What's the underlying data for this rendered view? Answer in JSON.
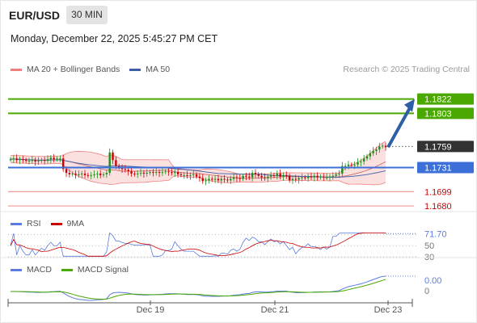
{
  "header": {
    "pair": "EUR/USD",
    "interval": "30 MIN",
    "datetime": "Monday, December 22, 2025 5:45:27 PM CET"
  },
  "legend": {
    "bb_label": "MA 20 + Bollinger Bands",
    "ma50_label": "MA 50",
    "credit": "Research © 2025 Trading Central"
  },
  "rsi_legend": {
    "rsi_label": "RSI",
    "ma_label": "9MA"
  },
  "macd_legend": {
    "macd_label": "MACD",
    "signal_label": "MACD Signal"
  },
  "colors": {
    "up": "#1a8f1a",
    "down": "#cc0000",
    "resistance": "#4aa800",
    "pivot": "#3c6fd8",
    "support": "#ee9a9a",
    "current": "#333333",
    "arrow": "#2f5ea8",
    "bb": "#f08080",
    "bb_fill": "#fbe0e0",
    "ma20": "#d06a6a",
    "ma50": "#3c5fa8",
    "rsi": "#5b7be0",
    "rsi_ma": "#cc0000",
    "macd": "#5b7be0",
    "macd_signal": "#4aa800"
  },
  "chart_data": [
    {
      "type": "candlestick",
      "title": "EUR/USD",
      "interval": "30 MIN",
      "x_ticks": [
        "Dec 19",
        "Dec 21",
        "Dec 23"
      ],
      "levels": [
        {
          "value": 1.1822,
          "label": "1.1822",
          "kind": "resistance"
        },
        {
          "value": 1.1803,
          "label": "1.1803",
          "kind": "resistance"
        },
        {
          "value": 1.1759,
          "label": "1.1759",
          "kind": "current"
        },
        {
          "value": 1.1731,
          "label": "1.1731",
          "kind": "pivot"
        },
        {
          "value": 1.1699,
          "label": "1.1699",
          "kind": "support"
        },
        {
          "value": 1.168,
          "label": "1.1680",
          "kind": "support"
        }
      ],
      "ylim": [
        1.1664,
        1.1857
      ],
      "close": [
        1.1742,
        1.1743,
        1.1741,
        1.1742,
        1.1741,
        1.174,
        1.174,
        1.1741,
        1.1739,
        1.174,
        1.1741,
        1.174,
        1.1742,
        1.1744,
        1.1742,
        1.1743,
        1.1743,
        1.1729,
        1.1724,
        1.1722,
        1.1723,
        1.1721,
        1.1722,
        1.1723,
        1.1721,
        1.172,
        1.1721,
        1.1722,
        1.1723,
        1.1721,
        1.1722,
        1.1724,
        1.1751,
        1.1741,
        1.1733,
        1.1731,
        1.1729,
        1.1728,
        1.1726,
        1.1723,
        1.1722,
        1.1723,
        1.1724,
        1.1723,
        1.1724,
        1.1725,
        1.1724,
        1.1725,
        1.1724,
        1.1725,
        1.1726,
        1.1725,
        1.1724,
        1.1725,
        1.1722,
        1.1721,
        1.1721,
        1.172,
        1.1721,
        1.1722,
        1.1719,
        1.1717,
        1.1713,
        1.1714,
        1.1716,
        1.1715,
        1.1716,
        1.1714,
        1.1716,
        1.1715,
        1.1714,
        1.1716,
        1.1718,
        1.1717,
        1.1716,
        1.172,
        1.1719,
        1.1718,
        1.1724,
        1.1722,
        1.172,
        1.1718,
        1.1717,
        1.1719,
        1.1721,
        1.172,
        1.1723,
        1.1719,
        1.1721,
        1.172,
        1.1714,
        1.1716,
        1.1715,
        1.1717,
        1.1718,
        1.1717,
        1.1719,
        1.1718,
        1.172,
        1.1718,
        1.1719,
        1.1718,
        1.1718,
        1.1719,
        1.172,
        1.1722,
        1.1723,
        1.1733,
        1.1733,
        1.1735,
        1.1734,
        1.1735,
        1.1738,
        1.1739,
        1.1743,
        1.1746,
        1.175,
        1.1753,
        1.1755,
        1.1759,
        1.176,
        1.1758
      ],
      "rsi": {
        "range": [
          30,
          70
        ],
        "ticks": [
          70,
          50,
          30
        ],
        "last_rsi": 71.7
      },
      "macd": {
        "ticks": [
          0
        ],
        "last_macd": 0.0
      }
    }
  ]
}
